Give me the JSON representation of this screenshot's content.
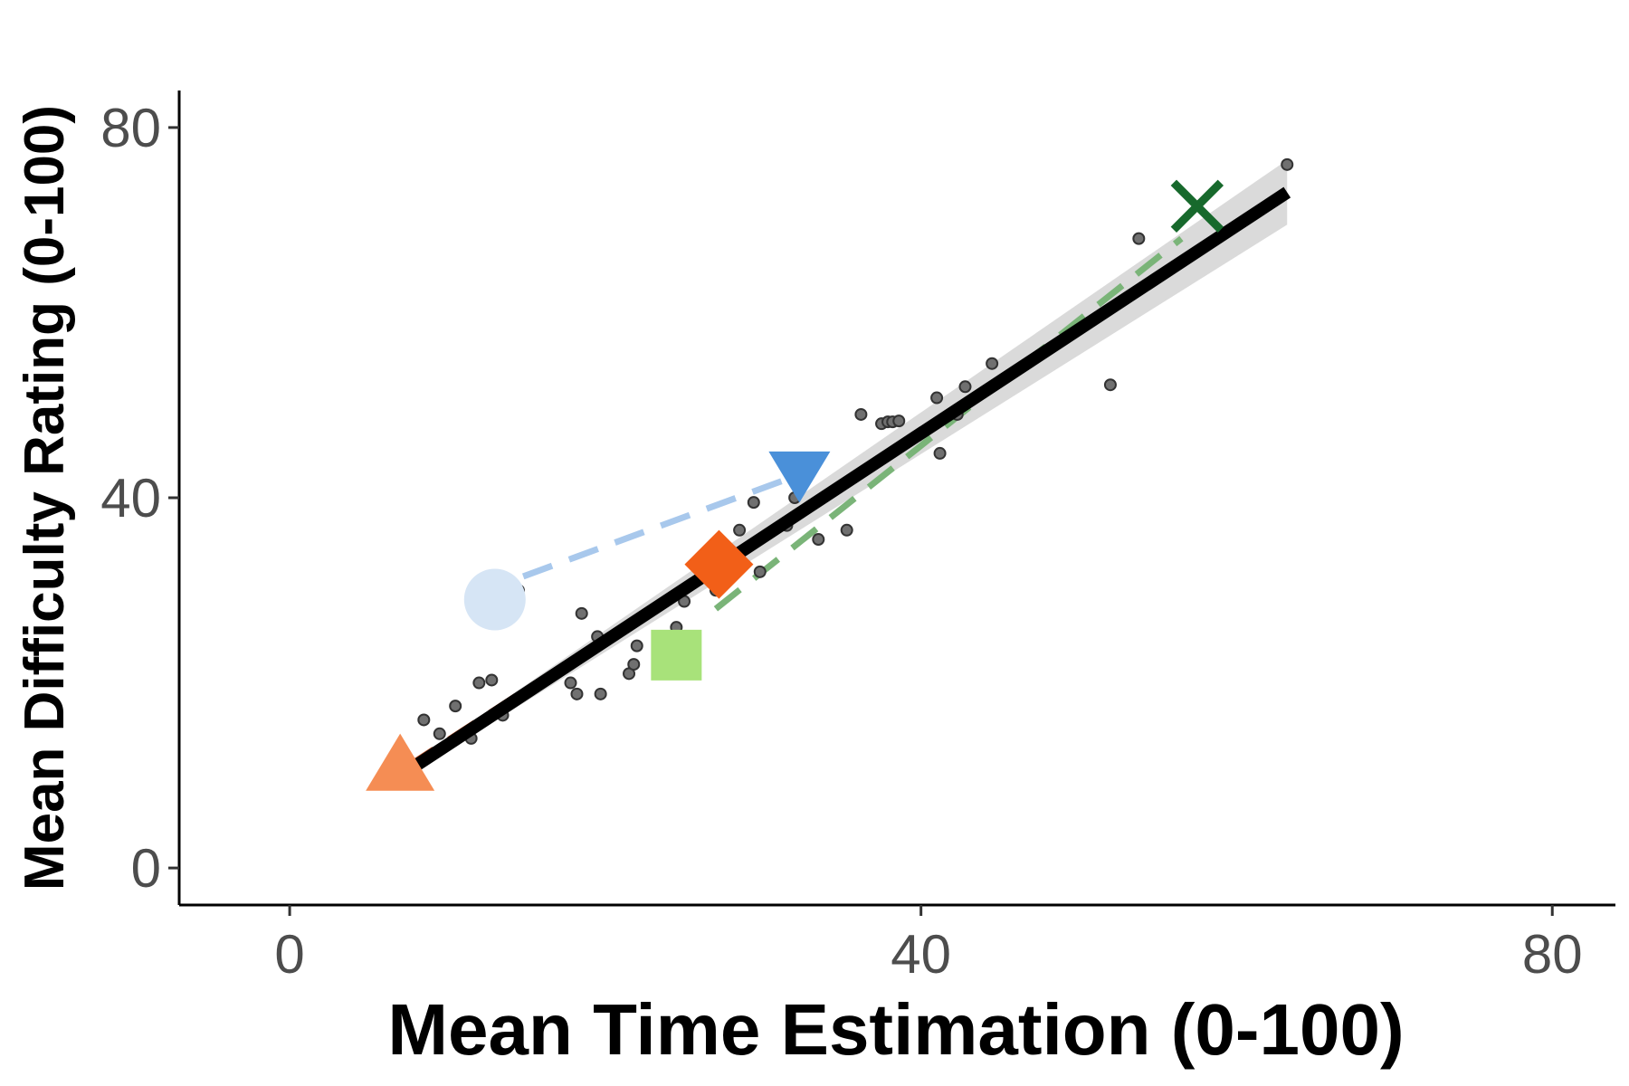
{
  "chart_data": {
    "type": "scatter",
    "xlabel": "Mean Time Estimation (0-100)",
    "ylabel": "Mean Difficulty Rating (0-100)",
    "xlim": [
      -7,
      84
    ],
    "ylim": [
      -4,
      84
    ],
    "xticks": [
      0,
      40,
      80
    ],
    "yticks": [
      0,
      40,
      80
    ],
    "x_tick_labels": [
      "0",
      "40",
      "80"
    ],
    "y_tick_labels": [
      "0",
      "40",
      "80"
    ],
    "grid": false,
    "points": [
      {
        "x": 8.5,
        "y": 16.0
      },
      {
        "x": 9.5,
        "y": 14.5
      },
      {
        "x": 10.5,
        "y": 17.5
      },
      {
        "x": 11.5,
        "y": 14.0
      },
      {
        "x": 12.0,
        "y": 20.0
      },
      {
        "x": 12.8,
        "y": 20.3
      },
      {
        "x": 13.5,
        "y": 16.5
      },
      {
        "x": 14.5,
        "y": 30.0
      },
      {
        "x": 17.8,
        "y": 20.0
      },
      {
        "x": 18.2,
        "y": 18.8
      },
      {
        "x": 18.5,
        "y": 27.5
      },
      {
        "x": 19.5,
        "y": 25.0
      },
      {
        "x": 19.7,
        "y": 18.8
      },
      {
        "x": 21.5,
        "y": 21.0
      },
      {
        "x": 21.8,
        "y": 22.0
      },
      {
        "x": 22.0,
        "y": 24.0
      },
      {
        "x": 24.5,
        "y": 26.0
      },
      {
        "x": 25.0,
        "y": 28.8
      },
      {
        "x": 27.0,
        "y": 30.0
      },
      {
        "x": 28.5,
        "y": 36.5
      },
      {
        "x": 29.4,
        "y": 39.5
      },
      {
        "x": 29.8,
        "y": 32.0
      },
      {
        "x": 31.5,
        "y": 37.0
      },
      {
        "x": 32.0,
        "y": 40.0
      },
      {
        "x": 33.5,
        "y": 35.5
      },
      {
        "x": 35.3,
        "y": 36.5
      },
      {
        "x": 36.2,
        "y": 49.0
      },
      {
        "x": 37.5,
        "y": 48.0
      },
      {
        "x": 37.9,
        "y": 48.2
      },
      {
        "x": 38.2,
        "y": 48.2
      },
      {
        "x": 38.6,
        "y": 48.3
      },
      {
        "x": 41.0,
        "y": 50.8
      },
      {
        "x": 41.2,
        "y": 44.8
      },
      {
        "x": 42.3,
        "y": 49.0
      },
      {
        "x": 42.8,
        "y": 52.0
      },
      {
        "x": 44.5,
        "y": 54.5
      },
      {
        "x": 52.0,
        "y": 52.2
      },
      {
        "x": 53.8,
        "y": 68.0
      },
      {
        "x": 63.2,
        "y": 76.0
      }
    ],
    "regression": {
      "x1": 7.5,
      "y1": 10.5,
      "x2": 63.2,
      "y2": 73.0,
      "ci_low": [
        10.0,
        69.5
      ],
      "ci_high": [
        11.0,
        76.5
      ]
    },
    "highlighted": [
      {
        "shape": "triangle-up",
        "x": 7.0,
        "y": 10.8,
        "color": "#f58d54"
      },
      {
        "shape": "diamond",
        "x": 27.2,
        "y": 32.8,
        "color": "#f25f18"
      },
      {
        "shape": "circle",
        "x": 13.0,
        "y": 29.0,
        "color": "#d6e5f5"
      },
      {
        "shape": "triangle-down",
        "x": 32.3,
        "y": 42.8,
        "color": "#4a90d9"
      },
      {
        "shape": "square",
        "x": 24.5,
        "y": 23.0,
        "color": "#a8e27a"
      },
      {
        "shape": "x",
        "x": 57.5,
        "y": 71.5,
        "color": "#17692c"
      }
    ],
    "dashed_lines": [
      {
        "color": "#c0582e",
        "x1": 7.5,
        "y1": 11.0,
        "x2": 26.0,
        "y2": 31.5
      },
      {
        "color": "#a8c8ec",
        "x1": 14.8,
        "y1": 31.5,
        "x2": 31.5,
        "y2": 42.0
      },
      {
        "color": "#7ab478",
        "x1": 27.0,
        "y1": 28.0,
        "x2": 56.5,
        "y2": 68.0
      }
    ]
  }
}
